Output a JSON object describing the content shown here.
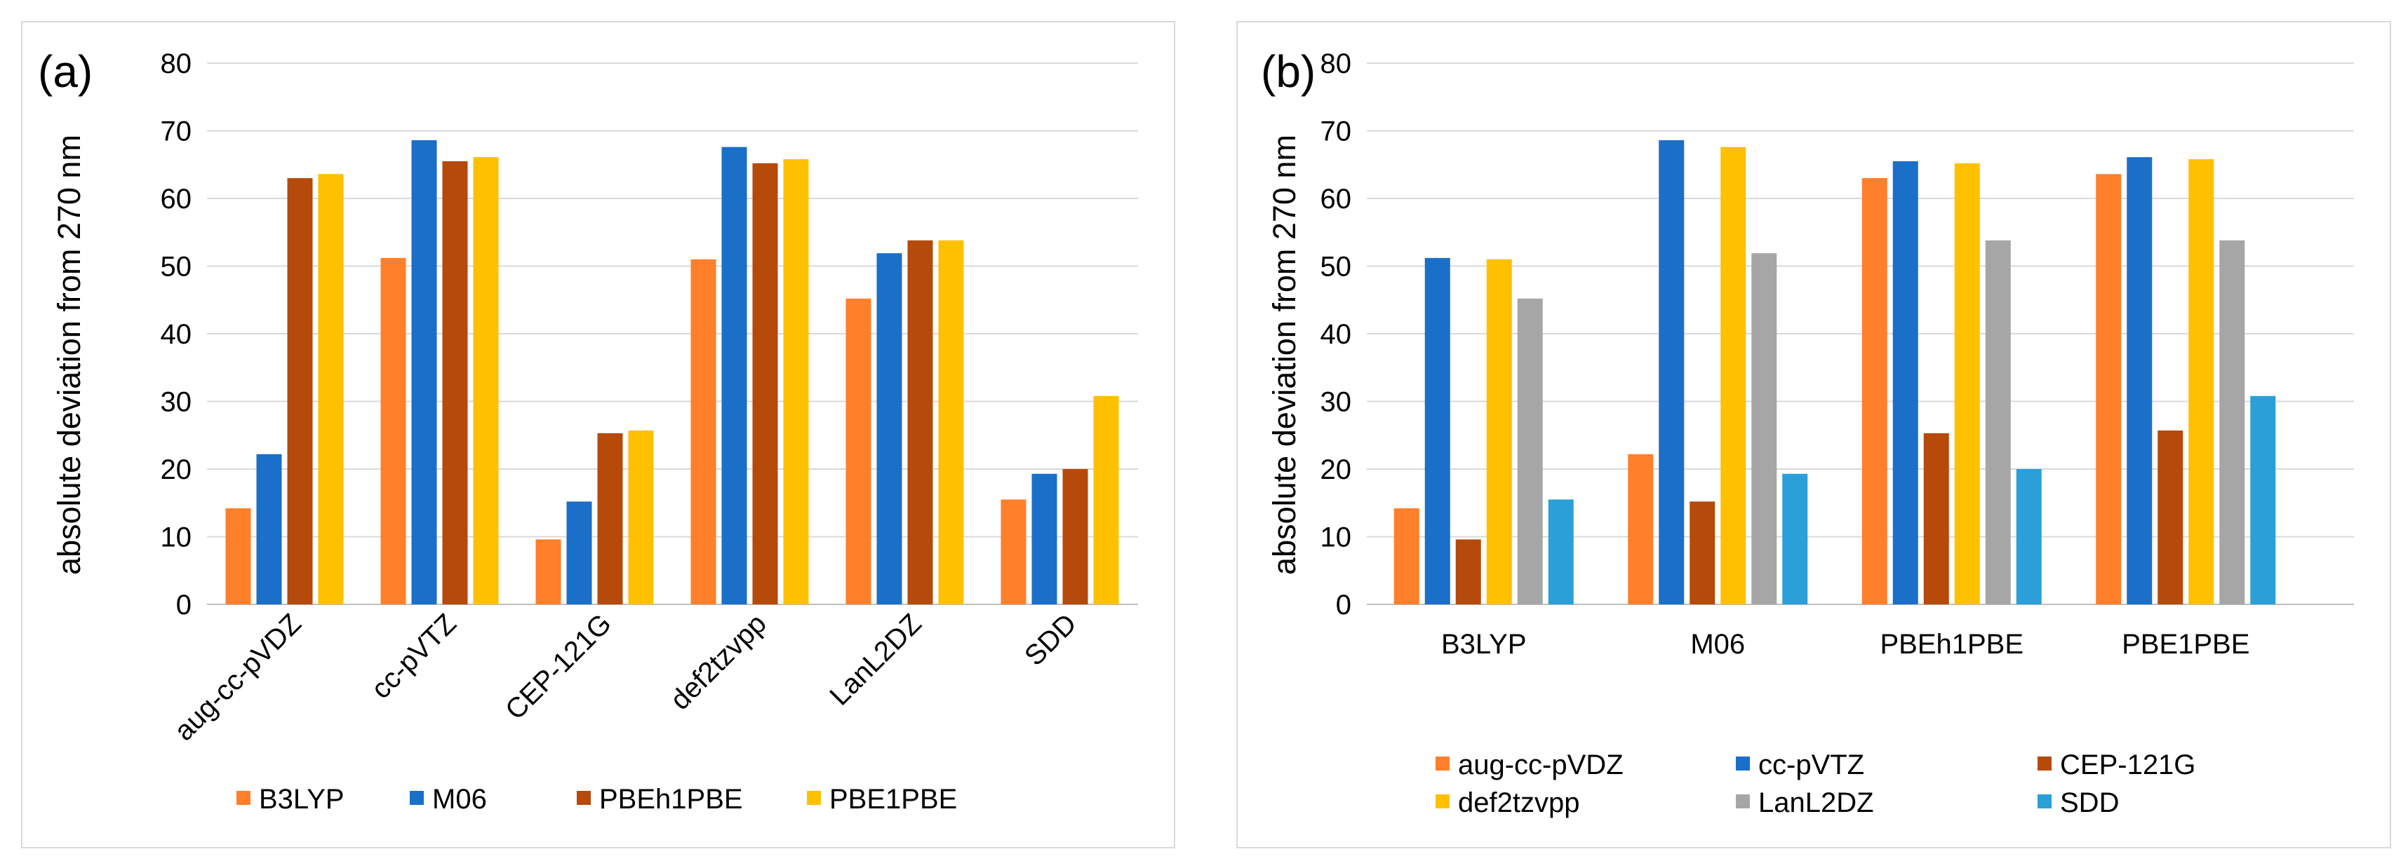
{
  "chart_data": [
    {
      "type": "bar",
      "panel_label": "(a)",
      "title": "",
      "xlabel": "",
      "ylabel": "absolute deviation  from 270 nm",
      "ylim": [
        0,
        80
      ],
      "yticks": [
        "0",
        "10",
        "20",
        "30",
        "40",
        "50",
        "60",
        "70",
        "80"
      ],
      "grid": true,
      "legend_position": "bottom",
      "categories": [
        "aug-cc-pVDZ",
        "cc-pVTZ",
        "CEP-121G",
        "def2tzvpp",
        "LanL2DZ",
        "SDD"
      ],
      "series": [
        {
          "name": "B3LYP",
          "color": "#ff7f2a",
          "values": [
            14.2,
            51.2,
            9.6,
            51.0,
            45.2,
            15.5
          ]
        },
        {
          "name": "M06",
          "color": "#1a6fc9",
          "values": [
            22.2,
            68.6,
            15.2,
            67.6,
            51.9,
            19.3
          ]
        },
        {
          "name": "PBEh1PBE",
          "color": "#b54a0a",
          "values": [
            63.0,
            65.5,
            25.3,
            65.2,
            53.8,
            20.0
          ]
        },
        {
          "name": "PBE1PBE",
          "color": "#ffc000",
          "values": [
            63.6,
            66.1,
            25.7,
            65.8,
            53.8,
            30.8
          ]
        }
      ]
    },
    {
      "type": "bar",
      "panel_label": "(b)",
      "title": "",
      "xlabel": "",
      "ylabel": "absolute deviation  from 270 nm",
      "ylim": [
        0,
        80
      ],
      "yticks": [
        "0",
        "10",
        "20",
        "30",
        "40",
        "50",
        "60",
        "70",
        "80"
      ],
      "grid": true,
      "legend_position": "bottom",
      "categories": [
        "B3LYP",
        "M06",
        "PBEh1PBE",
        "PBE1PBE"
      ],
      "series": [
        {
          "name": "aug-cc-pVDZ",
          "color": "#ff7f2a",
          "values": [
            14.2,
            22.2,
            63.0,
            63.6
          ]
        },
        {
          "name": "cc-pVTZ",
          "color": "#1a6fc9",
          "values": [
            51.2,
            68.6,
            65.5,
            66.1
          ]
        },
        {
          "name": "CEP-121G",
          "color": "#b54a0a",
          "values": [
            9.6,
            15.2,
            25.3,
            25.7
          ]
        },
        {
          "name": "def2tzvpp",
          "color": "#ffc000",
          "values": [
            51.0,
            67.6,
            65.2,
            65.8
          ]
        },
        {
          "name": "LanL2DZ",
          "color": "#a6a6a6",
          "values": [
            45.2,
            51.9,
            53.8,
            53.8
          ]
        },
        {
          "name": "SDD",
          "color": "#2a9fd8",
          "values": [
            15.5,
            19.3,
            20.0,
            30.8
          ]
        }
      ]
    }
  ]
}
